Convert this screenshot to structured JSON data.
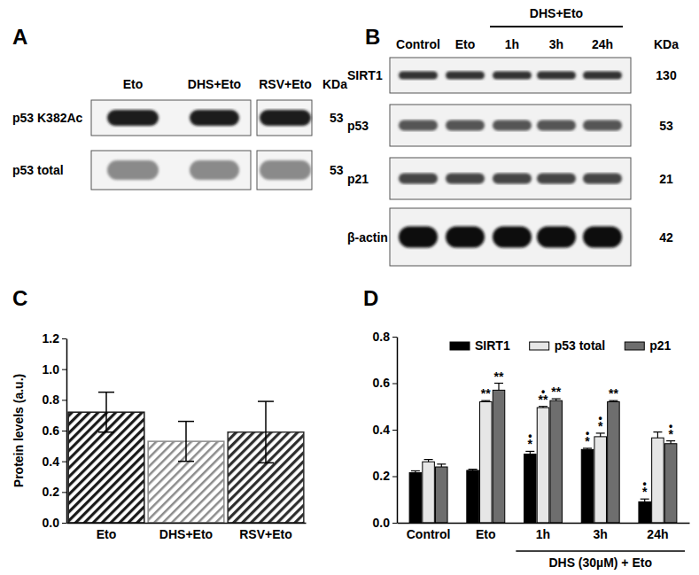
{
  "panel_labels": [
    "A",
    "B",
    "C",
    "D"
  ],
  "blots": {
    "A": {
      "columns": [
        "Eto",
        "DHS+Eto",
        "RSV+Eto"
      ],
      "kda_header": "KDa",
      "rows": [
        {
          "label": "p53 K382Ac",
          "kda": 53
        },
        {
          "label": "p53 total",
          "kda": 53
        }
      ]
    },
    "B": {
      "columns": [
        "Control",
        "Eto",
        "1h",
        "3h",
        "24h"
      ],
      "group_label": "DHS+Eto",
      "kda_header": "KDa",
      "rows": [
        {
          "label": "SIRT1",
          "kda": 130
        },
        {
          "label": "p53",
          "kda": 53
        },
        {
          "label": "p21",
          "kda": 21
        },
        {
          "label": "β-actin",
          "kda": 42
        }
      ]
    }
  },
  "chart_data": [
    {
      "type": "bar",
      "y_label": "Protein levels (a.u.)",
      "categories": [
        "Eto",
        "DHS+Eto",
        "RSV+Eto"
      ],
      "values": [
        0.72,
        0.53,
        0.59
      ],
      "errors": [
        0.13,
        0.13,
        0.2
      ],
      "colors": [
        "#1a1a1a",
        "#8c8c8c",
        "#2e2e2e"
      ],
      "ylim": [
        0,
        1.2
      ],
      "yticks": [
        {
          "value": 0,
          "label": "0.0"
        },
        0.2,
        0.4,
        0.6,
        0.8,
        {
          "value": 1,
          "label": "1.0"
        },
        1.2
      ]
    },
    {
      "type": "bar",
      "legend": "top",
      "categories": [
        "Control",
        "Eto",
        "1h",
        "3h",
        "24h"
      ],
      "annotations": [
        "DHS (30µM) + Eto"
      ],
      "series": [
        {
          "name": "SIRT1",
          "color": "#000000",
          "values": [
            0.215,
            0.225,
            0.295,
            0.315,
            0.09
          ],
          "errors": [
            0.008,
            0.005,
            0.012,
            0.005,
            0.012
          ],
          "significance": [
            [],
            [],
            [
              "•",
              "*"
            ],
            [
              "•",
              "*"
            ],
            [
              "•",
              "*"
            ]
          ]
        },
        {
          "name": "p53 total",
          "color": "#e6e6e6",
          "values": [
            0.262,
            0.52,
            0.495,
            0.37,
            0.365
          ],
          "errors": [
            0.01,
            0.005,
            0.005,
            0.015,
            0.025
          ],
          "significance": [
            [],
            [
              "**"
            ],
            [
              "•",
              "**"
            ],
            [
              "•",
              "*"
            ],
            []
          ]
        },
        {
          "name": "p21",
          "color": "#6e6e6e",
          "values": [
            0.24,
            0.57,
            0.525,
            0.52,
            0.34
          ],
          "errors": [
            0.012,
            0.03,
            0.008,
            0.005,
            0.012
          ],
          "significance": [
            [],
            [
              "**"
            ],
            [
              "**"
            ],
            [
              "**"
            ],
            [
              "•",
              "*"
            ]
          ]
        }
      ],
      "ylim": [
        0,
        0.8
      ],
      "yticks": [
        {
          "value": 0,
          "label": "0.0"
        },
        0.2,
        0.4,
        0.6,
        0.8
      ]
    }
  ]
}
